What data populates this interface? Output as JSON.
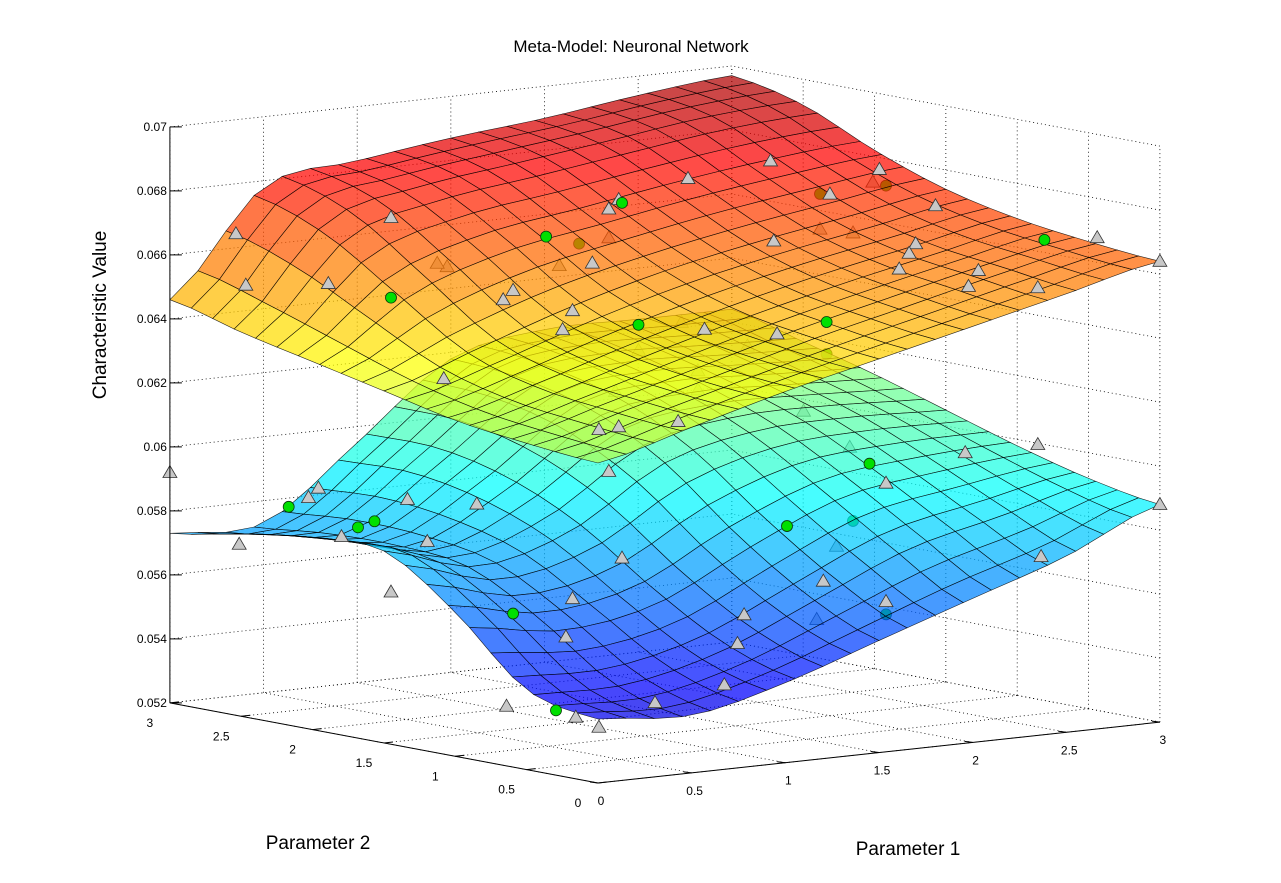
{
  "chart_data": {
    "type": "surface",
    "title": "Meta-Model: Neuronal Network",
    "xlabel": "Parameter 1",
    "ylabel": "Parameter 2",
    "zlabel": "Characteristic Value",
    "xlim": [
      0,
      3
    ],
    "ylim": [
      0,
      3
    ],
    "zlim": [
      0.052,
      0.07
    ],
    "grid": true,
    "colormap": "jet",
    "xticks": [
      "0",
      "0.5",
      "1",
      "1.5",
      "2",
      "2.5",
      "3"
    ],
    "yticks": [
      "0",
      "0.5",
      "1",
      "1.5",
      "2",
      "2.5",
      "3"
    ],
    "zticks": [
      "0.052",
      "0.054",
      "0.056",
      "0.058",
      "0.06",
      "0.062",
      "0.064",
      "0.066",
      "0.068",
      "0.07"
    ],
    "grid_axis": [
      0,
      0.5,
      1,
      1.5,
      2,
      2.5,
      3
    ],
    "surfaces": [
      {
        "name": "upper surface",
        "z_rows_by_parameter2": [
          [
            0.062,
            0.0628,
            0.0636,
            0.0643,
            0.065,
            0.0657,
            0.0664
          ],
          [
            0.0622,
            0.063,
            0.0638,
            0.0646,
            0.0653,
            0.066,
            0.0666
          ],
          [
            0.0625,
            0.0633,
            0.0642,
            0.065,
            0.0657,
            0.0663,
            0.0669
          ],
          [
            0.063,
            0.064,
            0.065,
            0.0658,
            0.0664,
            0.0669,
            0.0674
          ],
          [
            0.0635,
            0.0655,
            0.0665,
            0.067,
            0.0675,
            0.0679,
            0.0682
          ],
          [
            0.064,
            0.067,
            0.0678,
            0.0682,
            0.0686,
            0.069,
            0.0692
          ],
          [
            0.0646,
            0.0678,
            0.0683,
            0.0687,
            0.069,
            0.0694,
            0.0697
          ]
        ]
      },
      {
        "name": "lower surface",
        "z_rows_by_parameter2": [
          [
            0.054,
            0.0538,
            0.0545,
            0.0555,
            0.0565,
            0.0575,
            0.0588
          ],
          [
            0.0545,
            0.0545,
            0.0552,
            0.0565,
            0.0578,
            0.0585,
            0.0592
          ],
          [
            0.0565,
            0.056,
            0.0565,
            0.058,
            0.0592,
            0.0596,
            0.0598
          ],
          [
            0.058,
            0.0572,
            0.058,
            0.0598,
            0.0605,
            0.0606,
            0.0605
          ],
          [
            0.058,
            0.0575,
            0.059,
            0.061,
            0.0614,
            0.0613,
            0.0612
          ],
          [
            0.0577,
            0.0575,
            0.0595,
            0.0616,
            0.062,
            0.0619,
            0.0618
          ],
          [
            0.0573,
            0.0573,
            0.0595,
            0.0618,
            0.0624,
            0.0624,
            0.0624
          ]
        ]
      }
    ],
    "marker_colors": {
      "sample": "#c8c8c8",
      "validation": "#00e000"
    },
    "points_columns": [
      "parameter1",
      "parameter2",
      "value",
      "kind",
      "occluded"
    ],
    "points": [
      [
        0.2,
        2.8,
        0.0667,
        "sample",
        false
      ],
      [
        0.23,
        2.77,
        0.0651,
        "sample",
        false
      ],
      [
        0.67,
        2.33,
        0.0673,
        "sample",
        false
      ],
      [
        0.48,
        2.52,
        0.0652,
        "sample",
        false
      ],
      [
        0.0,
        3.0,
        0.0592,
        "sample",
        false
      ],
      [
        0.21,
        2.79,
        0.057,
        "sample",
        false
      ],
      [
        0.42,
        2.58,
        0.0585,
        "sample",
        false
      ],
      [
        0.45,
        2.55,
        0.0588,
        "sample",
        false
      ],
      [
        0.52,
        2.48,
        0.0573,
        "sample",
        false
      ],
      [
        0.72,
        2.28,
        0.0585,
        "sample",
        false
      ],
      [
        0.78,
        2.22,
        0.0572,
        "sample",
        false
      ],
      [
        0.83,
        2.17,
        0.0623,
        "sample",
        false
      ],
      [
        0.93,
        2.07,
        0.0584,
        "sample",
        false
      ],
      [
        0.67,
        2.33,
        0.0556,
        "sample",
        false
      ],
      [
        1.02,
        1.98,
        0.0521,
        "sample",
        false
      ],
      [
        1.2,
        1.8,
        0.0543,
        "sample",
        false
      ],
      [
        1.23,
        1.77,
        0.0518,
        "sample",
        false
      ],
      [
        1.3,
        1.7,
        0.0515,
        "sample",
        false
      ],
      [
        1.22,
        1.78,
        0.0555,
        "sample",
        false
      ],
      [
        1.37,
        1.63,
        0.0568,
        "sample",
        false
      ],
      [
        1.33,
        1.67,
        0.0595,
        "sample",
        false
      ],
      [
        1.3,
        1.7,
        0.0608,
        "sample",
        false
      ],
      [
        1.36,
        1.64,
        0.0609,
        "sample",
        false
      ],
      [
        1.54,
        1.46,
        0.0611,
        "sample",
        false
      ],
      [
        1.57,
        1.43,
        0.0687,
        "sample",
        false
      ],
      [
        1.36,
        1.64,
        0.068,
        "sample",
        false
      ],
      [
        1.33,
        1.67,
        0.0677,
        "sample",
        false
      ],
      [
        1.28,
        1.72,
        0.066,
        "sample",
        false
      ],
      [
        1.22,
        1.78,
        0.0645,
        "sample",
        false
      ],
      [
        1.19,
        1.81,
        0.0639,
        "sample",
        false
      ],
      [
        1.01,
        1.99,
        0.0648,
        "sample",
        false
      ],
      [
        1.04,
        1.96,
        0.0651,
        "sample",
        false
      ],
      [
        1.82,
        1.18,
        0.0693,
        "sample",
        false
      ],
      [
        1.83,
        1.17,
        0.0668,
        "sample",
        false
      ],
      [
        1.62,
        1.38,
        0.064,
        "sample",
        false
      ],
      [
        1.84,
        1.16,
        0.0639,
        "sample",
        false
      ],
      [
        3.0,
        0.0,
        0.0664,
        "sample",
        false
      ],
      [
        2.81,
        0.19,
        0.0671,
        "sample",
        false
      ],
      [
        2.63,
        0.37,
        0.0655,
        "sample",
        false
      ],
      [
        2.42,
        0.58,
        0.0655,
        "sample",
        false
      ],
      [
        2.45,
        0.55,
        0.066,
        "sample",
        false
      ],
      [
        2.26,
        0.74,
        0.0668,
        "sample",
        false
      ],
      [
        2.24,
        0.76,
        0.0665,
        "sample",
        false
      ],
      [
        2.21,
        0.79,
        0.066,
        "sample",
        false
      ],
      [
        2.32,
        0.68,
        0.068,
        "sample",
        false
      ],
      [
        2.63,
        0.37,
        0.0606,
        "sample",
        false
      ],
      [
        3.0,
        0.0,
        0.0588,
        "sample",
        false
      ],
      [
        2.64,
        0.36,
        0.0571,
        "sample",
        false
      ],
      [
        2.41,
        0.59,
        0.0603,
        "sample",
        false
      ],
      [
        2.17,
        0.83,
        0.0593,
        "sample",
        false
      ],
      [
        1.72,
        1.28,
        0.0542,
        "sample",
        false
      ],
      [
        1.74,
        1.26,
        0.0551,
        "sample",
        false
      ],
      [
        1.68,
        1.32,
        0.0529,
        "sample",
        false
      ],
      [
        1.98,
        1.02,
        0.0562,
        "sample",
        false
      ],
      [
        2.17,
        0.83,
        0.0556,
        "sample",
        false
      ],
      [
        2.15,
        0.85,
        0.0691,
        "sample",
        false
      ],
      [
        2.0,
        1.0,
        0.0683,
        "sample",
        false
      ],
      [
        1.47,
        1.53,
        0.0523,
        "sample",
        false
      ],
      [
        0.84,
        2.16,
        0.0658,
        "sample",
        true
      ],
      [
        0.81,
        2.19,
        0.0659,
        "sample",
        true
      ],
      [
        1.18,
        1.82,
        0.0659,
        "sample",
        true
      ],
      [
        1.33,
        1.67,
        0.0668,
        "sample",
        true
      ],
      [
        1.42,
        1.58,
        0.0633,
        "sample",
        true
      ],
      [
        1.6,
        1.4,
        0.0627,
        "sample",
        true
      ],
      [
        1.6,
        1.4,
        0.0621,
        "sample",
        true
      ],
      [
        1.75,
        1.25,
        0.0635,
        "sample",
        true
      ],
      [
        1.35,
        1.65,
        0.062,
        "sample",
        true
      ],
      [
        1.55,
        1.45,
        0.0642,
        "sample",
        true
      ],
      [
        1.97,
        1.03,
        0.0672,
        "sample",
        true
      ],
      [
        2.07,
        0.93,
        0.0671,
        "sample",
        true
      ],
      [
        2.13,
        0.87,
        0.0687,
        "sample",
        true
      ],
      [
        1.92,
        1.08,
        0.0615,
        "sample",
        true
      ],
      [
        2.06,
        0.94,
        0.0604,
        "sample",
        true
      ],
      [
        2.02,
        0.98,
        0.0573,
        "sample",
        true
      ],
      [
        1.96,
        1.04,
        0.055,
        "sample",
        true
      ],
      [
        1.37,
        1.63,
        0.0679,
        "validation",
        false
      ],
      [
        1.14,
        1.86,
        0.0668,
        "validation",
        false
      ],
      [
        0.67,
        2.33,
        0.0648,
        "validation",
        false
      ],
      [
        1.42,
        1.58,
        0.0641,
        "validation",
        false
      ],
      [
        1.99,
        1.01,
        0.0643,
        "validation",
        false
      ],
      [
        2.65,
        0.35,
        0.067,
        "validation",
        false
      ],
      [
        0.36,
        2.64,
        0.0582,
        "validation",
        false
      ],
      [
        0.57,
        2.43,
        0.0576,
        "validation",
        false
      ],
      [
        0.62,
        2.38,
        0.0578,
        "validation",
        false
      ],
      [
        1.04,
        1.96,
        0.055,
        "validation",
        false
      ],
      [
        1.17,
        1.83,
        0.052,
        "validation",
        false
      ],
      [
        1.87,
        1.13,
        0.0579,
        "validation",
        false
      ],
      [
        2.12,
        0.88,
        0.0599,
        "validation",
        false
      ],
      [
        1.24,
        1.76,
        0.0666,
        "validation",
        true
      ],
      [
        1.97,
        1.03,
        0.0683,
        "validation",
        true
      ],
      [
        2.17,
        0.83,
        0.0686,
        "validation",
        true
      ],
      [
        2.07,
        0.93,
        0.0581,
        "validation",
        true
      ],
      [
        2.17,
        0.83,
        0.0552,
        "validation",
        true
      ],
      [
        1.99,
        1.01,
        0.0633,
        "validation",
        true
      ]
    ]
  }
}
